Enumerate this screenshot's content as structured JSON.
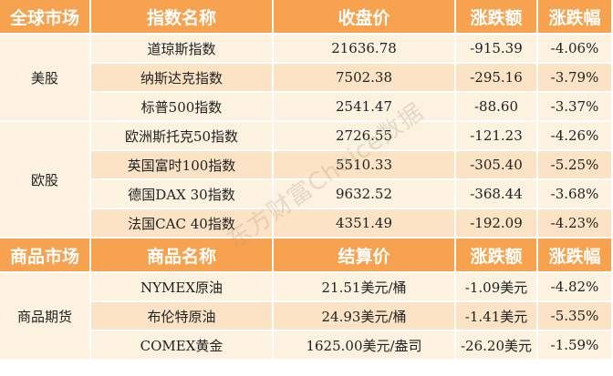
{
  "table1": {
    "headers": [
      "全球市场",
      "指数名称",
      "收盘价",
      "涨跌额",
      "涨跌幅"
    ],
    "groups": [
      {
        "market": "美股",
        "rows": [
          [
            "道琼斯指数",
            "21636.78",
            "-915.39",
            "-4.06%"
          ],
          [
            "纳斯达克指数",
            "7502.38",
            "-295.16",
            "-3.79%"
          ],
          [
            "标普500指数",
            "2541.47",
            "-88.60",
            "-3.37%"
          ]
        ]
      },
      {
        "market": "欧股",
        "rows": [
          [
            "欧洲斯托克50指数",
            "2726.55",
            "-121.23",
            "-4.26%"
          ],
          [
            "英国富时100指数",
            "5510.33",
            "-305.40",
            "-5.25%"
          ],
          [
            "德国DAX 30指数",
            "9632.52",
            "-368.44",
            "-3.68%"
          ],
          [
            "法国CAC 40指数",
            "4351.49",
            "-192.09",
            "-4.23%"
          ]
        ]
      }
    ]
  },
  "table2": {
    "headers": [
      "商品市场",
      "商品名称",
      "结算价",
      "涨跌额",
      "涨跌幅"
    ],
    "groups": [
      {
        "market": "商品期货",
        "rows": [
          [
            "NYMEX原油",
            "21.51美元/桶",
            "-1.09美元",
            "-4.82%"
          ],
          [
            "布伦特原油",
            "24.93美元/桶",
            "-1.41美元",
            "-5.35%"
          ],
          [
            "COMEX黄金",
            "1625.00美元/盎司",
            "-26.20美元",
            "-1.59%"
          ]
        ]
      }
    ]
  },
  "watermark": "东方财富Choice数据",
  "colors": {
    "header": "#f6a24e",
    "row_light": "#fdf1e0",
    "row_dark": "#fde3c5"
  }
}
